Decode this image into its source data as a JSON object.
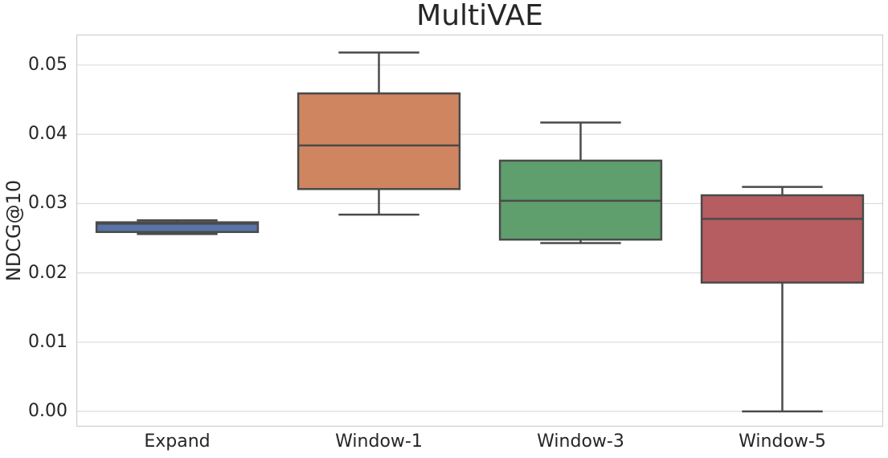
{
  "figure": {
    "background": "#ffffff"
  },
  "chart_data": {
    "type": "box",
    "title": "MultiVAE",
    "ylabel": "NDCG@10",
    "xlabel": "",
    "categories": [
      "Expand",
      "Window-1",
      "Window-3",
      "Window-5"
    ],
    "series": [
      {
        "category": "Expand",
        "fill": "#5973A6",
        "whisker_low": 0.0256,
        "q1": 0.0259,
        "median": 0.0271,
        "q3": 0.0273,
        "whisker_high": 0.0276
      },
      {
        "category": "Window-1",
        "fill": "#CF8560",
        "whisker_low": 0.0284,
        "q1": 0.0321,
        "median": 0.0384,
        "q3": 0.0459,
        "whisker_high": 0.0518
      },
      {
        "category": "Window-3",
        "fill": "#5F9E6D",
        "whisker_low": 0.0243,
        "q1": 0.0248,
        "median": 0.0304,
        "q3": 0.0362,
        "whisker_high": 0.0417
      },
      {
        "category": "Window-5",
        "fill": "#B55D60",
        "whisker_low": 0.0,
        "q1": 0.0186,
        "median": 0.0278,
        "q3": 0.0312,
        "whisker_high": 0.0324
      }
    ],
    "yticks": [
      {
        "value": 0.0,
        "label": "0.00"
      },
      {
        "value": 0.01,
        "label": "0.01"
      },
      {
        "value": 0.02,
        "label": "0.02"
      },
      {
        "value": 0.03,
        "label": "0.03"
      },
      {
        "value": 0.04,
        "label": "0.04"
      },
      {
        "value": 0.05,
        "label": "0.05"
      }
    ],
    "ylim": [
      -0.0022,
      0.0544
    ],
    "grid": "horizontal",
    "legend": "none",
    "colors": {
      "box_line": "#4a4a4a",
      "grid_line": "#dcdcdc",
      "spine": "#cccccc",
      "text": "#262626"
    }
  }
}
